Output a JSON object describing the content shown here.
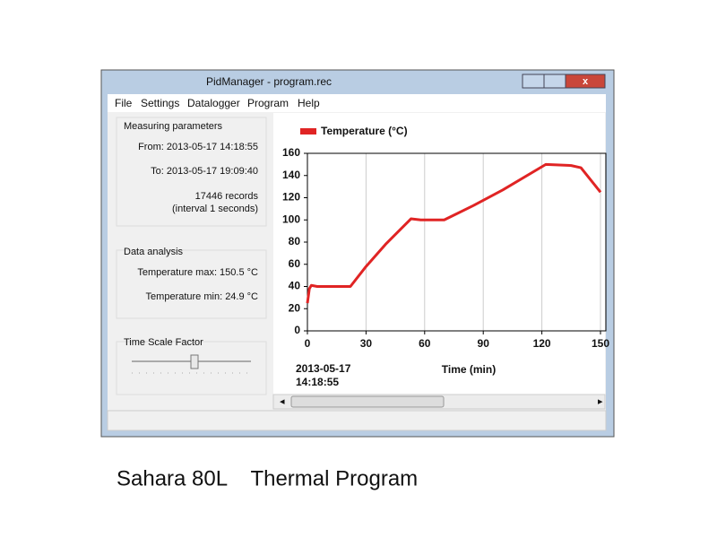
{
  "window": {
    "title": "PidManager - program.rec"
  },
  "menu": [
    "File",
    "Settings",
    "Datalogger",
    "Program",
    "Help"
  ],
  "measuring": {
    "title": "Measuring parameters",
    "from": "From: 2013-05-17 14:18:55",
    "to": "To: 2013-05-17 19:09:40",
    "records": "17446 records",
    "interval": "(interval 1 seconds)"
  },
  "analysis": {
    "title": "Data analysis",
    "max": "Temperature max: 150.5 °C",
    "min": "Temperature min: 24.9 °C"
  },
  "time_scale": {
    "title": "Time Scale Factor"
  },
  "caption": "Sahara 80L    Thermal Program",
  "chart_data": {
    "type": "line",
    "x": [
      0,
      1,
      2,
      5,
      10,
      15,
      22,
      30,
      40,
      53,
      58,
      70,
      85,
      100,
      122,
      135,
      140,
      150
    ],
    "series": [
      {
        "name": "Temperature (°C)",
        "color": "#e02424",
        "values": [
          25,
          38,
          41,
          40,
          40,
          40,
          40,
          58,
          78,
          101,
          100,
          100,
          113,
          127,
          150,
          149,
          147,
          125
        ]
      }
    ],
    "xlim": [
      0,
      150
    ],
    "ylim": [
      0,
      160
    ],
    "xticks": [
      0,
      30,
      60,
      90,
      120,
      150
    ],
    "yticks": [
      0,
      20,
      40,
      60,
      80,
      100,
      120,
      140,
      160
    ],
    "xlabel": "Time (min)",
    "start_date": "2013-05-17",
    "start_time": "14:18:55",
    "grid": "x"
  }
}
